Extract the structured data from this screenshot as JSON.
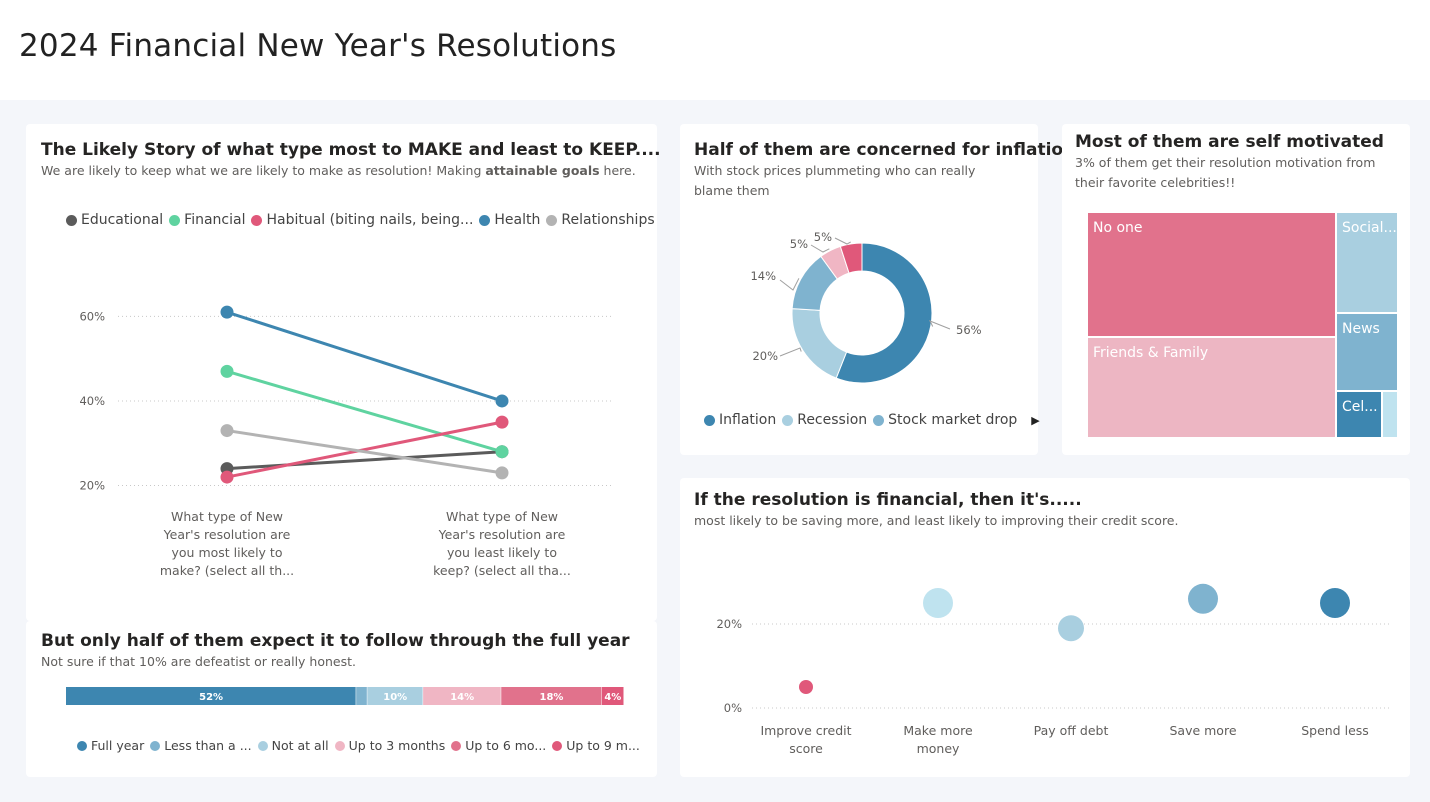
{
  "page_title": "2024 Financial New Year's Resolutions",
  "slope": {
    "title": "The Likely Story of what type most to MAKE and least to KEEP....",
    "subtitle_pre": "We are likely to keep what we are likely to make as resolution! Making ",
    "subtitle_bold": "attainable goals",
    "subtitle_post": " here.",
    "x_labels": [
      [
        "What type of New",
        "Year's resolution are",
        "you most likely to",
        "make? (select all th..."
      ],
      [
        "What type of New",
        "Year's resolution are",
        "you least likely to",
        "keep? (select all tha..."
      ]
    ]
  },
  "donut": {
    "title": "Half of them are concerned for inflation",
    "subtitle": [
      "With stock prices plummeting who can really",
      "blame them"
    ]
  },
  "treemap": {
    "title": "Most of them are self motivated",
    "subtitle": [
      "3% of them get their resolution motivation from",
      "their favorite celebrities!!"
    ]
  },
  "stacked": {
    "title": "But only half of them expect it to follow through the full year",
    "subtitle": "Not sure if that 10% are defeatist or really honest."
  },
  "bubble": {
    "title": "If the resolution is financial, then it's.....",
    "subtitle": "most likely to be saving more, and least likely to improving their credit score."
  },
  "chart_data": [
    {
      "type": "line",
      "categories": [
        "What type of New Year's resolution are you most likely to make? (select all th...",
        "What type of New Year's resolution are you least likely to keep? (select all tha..."
      ],
      "y_ticks": [
        "20%",
        "40%",
        "60%"
      ],
      "ylim": [
        0.18,
        0.66
      ],
      "grid": true,
      "legend_position": "top",
      "series": [
        {
          "name": "Educational",
          "color": "#5b5b5b",
          "values": [
            0.24,
            0.28
          ]
        },
        {
          "name": "Financial",
          "color": "#5fd3a0",
          "values": [
            0.47,
            0.28
          ]
        },
        {
          "name": "Habitual (biting nails, being...",
          "color": "#e0587a",
          "values": [
            0.22,
            0.35
          ]
        },
        {
          "name": "Health",
          "color": "#3d86b0",
          "values": [
            0.61,
            0.4
          ]
        },
        {
          "name": "Relationships",
          "color": "#b3b3b3",
          "values": [
            0.33,
            0.23
          ]
        }
      ]
    },
    {
      "type": "pie",
      "style": "donut",
      "legend_position": "bottom",
      "legend_more": "▶",
      "slices": [
        {
          "name": "Inflation",
          "value": 0.56,
          "label": "56%",
          "color": "#3d86b0"
        },
        {
          "name": "Recession",
          "value": 0.2,
          "label": "20%",
          "color": "#a9cfe0"
        },
        {
          "name": "Stock market drop",
          "value": 0.14,
          "label": "14%",
          "color": "#7fb3cf"
        },
        {
          "name": "",
          "value": 0.05,
          "label": "5%",
          "color": "#f0b6c4"
        },
        {
          "name": "",
          "value": 0.05,
          "label": "5%",
          "color": "#e0587a"
        }
      ]
    },
    {
      "type": "treemap",
      "items": [
        {
          "name": "No one",
          "color": "#e1728c"
        },
        {
          "name": "Friends & Family",
          "color": "#edb6c3"
        },
        {
          "name": "Social...",
          "color": "#a9cfe0"
        },
        {
          "name": "News",
          "color": "#7fb3cf"
        },
        {
          "name": "Cel...",
          "color": "#3d86b0"
        },
        {
          "name": "",
          "color": "#bfe3ef"
        }
      ]
    },
    {
      "type": "bar",
      "orientation": "horizontal-stacked",
      "legend_position": "bottom",
      "segments": [
        {
          "name": "Full year",
          "value": 52,
          "label": "52%",
          "color": "#3d86b0"
        },
        {
          "name": "Less than a ...",
          "value": 2,
          "label": "",
          "color": "#7fb3cf"
        },
        {
          "name": "Not at all",
          "value": 10,
          "label": "10%",
          "color": "#a9cfe0"
        },
        {
          "name": "Up to 3 months",
          "value": 14,
          "label": "14%",
          "color": "#f0b6c4"
        },
        {
          "name": "Up to 6 mo...",
          "value": 18,
          "label": "18%",
          "color": "#e1728c"
        },
        {
          "name": "Up to 9 m...",
          "value": 4,
          "label": "4%",
          "color": "#e0587a"
        }
      ]
    },
    {
      "type": "scatter",
      "categories": [
        [
          "Improve credit",
          "score"
        ],
        [
          "Make more",
          "money"
        ],
        [
          "Pay off debt"
        ],
        [
          "Save more"
        ],
        [
          "Spend less"
        ]
      ],
      "values": [
        0.05,
        0.25,
        0.19,
        0.26,
        0.25
      ],
      "colors": [
        "#e0587a",
        "#bfe3ef",
        "#a9cfe0",
        "#7fb3cf",
        "#3d86b0"
      ],
      "y_ticks": [
        "0%",
        "20%"
      ],
      "ylim": [
        0,
        0.34
      ],
      "grid": true
    }
  ]
}
